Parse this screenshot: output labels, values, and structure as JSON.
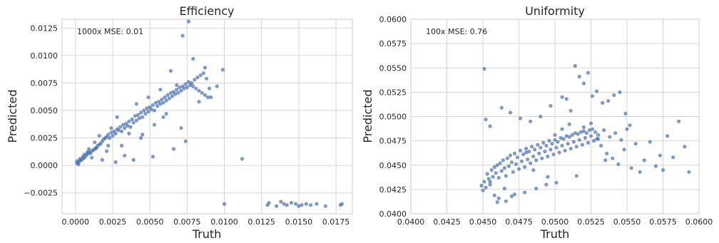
{
  "chart_data": [
    {
      "type": "scatter",
      "title": "Efficiency",
      "xlabel": "Truth",
      "ylabel": "Predicted",
      "annotation": "1000x MSE: 0.01",
      "xlim": [
        -0.0009,
        0.0186
      ],
      "ylim": [
        -0.0044,
        0.0133
      ],
      "xticks": [
        0.0,
        0.0025,
        0.005,
        0.0075,
        0.01,
        0.0125,
        0.015,
        0.0175
      ],
      "xtick_labels": [
        "0.0000",
        "0.0025",
        "0.0050",
        "0.0075",
        "0.0100",
        "0.0125",
        "0.0150",
        "0.0175"
      ],
      "yticks": [
        -0.0025,
        0.0,
        0.0025,
        0.005,
        0.0075,
        0.01,
        0.0125
      ],
      "ytick_labels": [
        "−0.0025",
        "0.0000",
        "0.0025",
        "0.0050",
        "0.0075",
        "0.0100",
        "0.0125"
      ],
      "grid": true,
      "color": "#4c72b0",
      "x": [
        0.0001,
        0.0001,
        0.0002,
        0.0002,
        0.0003,
        0.0004,
        0.0005,
        0.0006,
        0.0007,
        0.0008,
        0.0009,
        0.001,
        0.0011,
        0.0012,
        0.0013,
        0.0014,
        0.0015,
        0.0016,
        0.0017,
        0.0018,
        0.0019,
        0.002,
        0.0021,
        0.0022,
        0.0023,
        0.0024,
        0.0025,
        0.0026,
        0.0027,
        0.0028,
        0.0029,
        0.003,
        0.0031,
        0.0032,
        0.0033,
        0.0034,
        0.0035,
        0.0036,
        0.0037,
        0.0038,
        0.0039,
        0.004,
        0.0041,
        0.0042,
        0.0043,
        0.0044,
        0.0045,
        0.0046,
        0.0047,
        0.0048,
        0.0049,
        0.005,
        0.0051,
        0.0052,
        0.0053,
        0.0054,
        0.0055,
        0.0056,
        0.0057,
        0.0058,
        0.0059,
        0.006,
        0.0061,
        0.0062,
        0.0063,
        0.0064,
        0.0065,
        0.0066,
        0.0067,
        0.0068,
        0.0069,
        0.007,
        0.0071,
        0.0072,
        0.0073,
        0.0074,
        0.0075,
        0.0076,
        0.0077,
        0.0078,
        0.0079,
        0.008,
        0.0081,
        0.0082,
        0.0083,
        0.0084,
        0.0085,
        0.0086,
        0.0087,
        0.0088,
        0.0089,
        0.009,
        0.0095,
        0.0099,
        0.01,
        0.0112,
        0.0129,
        0.013,
        0.0135,
        0.0138,
        0.014,
        0.0142,
        0.0145,
        0.0148,
        0.015,
        0.0152,
        0.0155,
        0.0158,
        0.0162,
        0.0168,
        0.0178,
        0.0179,
        0.0003,
        0.0006,
        0.0009,
        0.0013,
        0.0016,
        0.0021,
        0.0024,
        0.0028,
        0.0031,
        0.0036,
        0.0041,
        0.0045,
        0.0049,
        0.0053,
        0.0057,
        0.0061,
        0.0064,
        0.0068,
        0.0072,
        0.0076,
        0.0079,
        0.0083,
        0.0087,
        0.0091,
        0.0074,
        0.0071,
        0.0066,
        0.0059,
        0.0052,
        0.0044,
        0.0039,
        0.0033,
        0.0027,
        0.0022,
        0.0018,
        0.0014,
        0.0011,
        0.0008,
        0.0005
      ],
      "y": [
        0.0002,
        0.0004,
        0.0003,
        0.0001,
        0.0004,
        0.0005,
        0.0006,
        0.0007,
        0.0009,
        0.001,
        0.0012,
        0.0011,
        0.0013,
        0.0014,
        0.0015,
        0.0016,
        0.0018,
        0.0019,
        0.002,
        0.0022,
        0.0024,
        0.0025,
        0.0026,
        0.0028,
        0.0025,
        0.003,
        0.0027,
        0.0031,
        0.0029,
        0.0033,
        0.0032,
        0.0035,
        0.0031,
        0.0037,
        0.0034,
        0.0038,
        0.0036,
        0.004,
        0.0035,
        0.0042,
        0.0039,
        0.0045,
        0.0041,
        0.0046,
        0.0043,
        0.0048,
        0.0044,
        0.005,
        0.0047,
        0.0052,
        0.0049,
        0.0053,
        0.0051,
        0.0055,
        0.005,
        0.0057,
        0.0054,
        0.0058,
        0.0056,
        0.006,
        0.0057,
        0.0062,
        0.0059,
        0.0064,
        0.0061,
        0.0066,
        0.0063,
        0.0067,
        0.0065,
        0.0069,
        0.0066,
        0.0071,
        0.0068,
        0.0072,
        0.007,
        0.0074,
        0.0071,
        0.0076,
        0.0073,
        0.0075,
        0.0072,
        0.0078,
        0.007,
        0.008,
        0.0068,
        0.0082,
        0.0066,
        0.0084,
        0.0064,
        0.0079,
        0.0062,
        0.007,
        0.0072,
        0.0087,
        -0.0035,
        0.0006,
        -0.0036,
        -0.0034,
        -0.0037,
        -0.0033,
        -0.0035,
        -0.0036,
        -0.0034,
        -0.0035,
        -0.0037,
        -0.0036,
        -0.0035,
        -0.0036,
        -0.0035,
        -0.0037,
        -0.0036,
        -0.0035,
        0.0006,
        0.001,
        0.0015,
        0.0021,
        0.0027,
        0.0013,
        0.0034,
        0.0044,
        0.0018,
        0.0029,
        0.0056,
        0.0028,
        0.0062,
        0.0037,
        0.0069,
        0.0047,
        0.0086,
        0.0073,
        0.0118,
        0.0131,
        0.0097,
        0.0058,
        0.0089,
        0.0062,
        0.0022,
        0.0034,
        0.0015,
        0.0044,
        0.0008,
        0.0025,
        0.0005,
        0.0009,
        0.0003,
        0.0018,
        0.0005,
        0.0016,
        0.0007,
        0.0012,
        0.0008
      ]
    },
    {
      "type": "scatter",
      "title": "Uniformity",
      "xlabel": "Truth",
      "ylabel": "Predicted",
      "annotation": "100x MSE: 0.76",
      "xlim": [
        0.04,
        0.06
      ],
      "ylim": [
        0.04,
        0.06
      ],
      "xticks": [
        0.04,
        0.0425,
        0.045,
        0.0475,
        0.05,
        0.0525,
        0.055,
        0.0575,
        0.06
      ],
      "xtick_labels": [
        "0.0400",
        "0.0425",
        "0.0450",
        "0.0475",
        "0.0500",
        "0.0525",
        "0.0550",
        "0.0575",
        "0.0600"
      ],
      "yticks": [
        0.04,
        0.0425,
        0.045,
        0.0475,
        0.05,
        0.0525,
        0.055,
        0.0575,
        0.06
      ],
      "ytick_labels": [
        "0.0400",
        "0.0425",
        "0.0450",
        "0.0475",
        "0.0500",
        "0.0525",
        "0.0550",
        "0.0575",
        "0.0600"
      ],
      "grid": true,
      "color": "#4c72b0",
      "x": [
        0.0449,
        0.045,
        0.0451,
        0.0452,
        0.0453,
        0.0454,
        0.0455,
        0.0456,
        0.0457,
        0.0458,
        0.0459,
        0.046,
        0.0461,
        0.0462,
        0.0463,
        0.0464,
        0.0465,
        0.0466,
        0.0467,
        0.0468,
        0.0469,
        0.047,
        0.0471,
        0.0472,
        0.0473,
        0.0474,
        0.0475,
        0.0476,
        0.0477,
        0.0478,
        0.0479,
        0.048,
        0.0481,
        0.0482,
        0.0483,
        0.0484,
        0.0485,
        0.0486,
        0.0487,
        0.0488,
        0.0489,
        0.049,
        0.0491,
        0.0492,
        0.0493,
        0.0494,
        0.0495,
        0.0496,
        0.0497,
        0.0498,
        0.0499,
        0.05,
        0.0501,
        0.0502,
        0.0503,
        0.0504,
        0.0505,
        0.0506,
        0.0507,
        0.0508,
        0.0509,
        0.051,
        0.0511,
        0.0512,
        0.0513,
        0.0514,
        0.0515,
        0.0516,
        0.0517,
        0.0518,
        0.0519,
        0.052,
        0.0521,
        0.0522,
        0.0523,
        0.0524,
        0.0525,
        0.0526,
        0.0527,
        0.0528,
        0.0529,
        0.053,
        0.0532,
        0.0534,
        0.0536,
        0.0538,
        0.054,
        0.0542,
        0.0544,
        0.0546,
        0.0548,
        0.055,
        0.0553,
        0.0556,
        0.0559,
        0.0562,
        0.0566,
        0.057,
        0.0573,
        0.0575,
        0.0578,
        0.0582,
        0.0586,
        0.059,
        0.0593,
        0.0451,
        0.0452,
        0.0455,
        0.0458,
        0.0461,
        0.0463,
        0.0466,
        0.0469,
        0.0472,
        0.0476,
        0.0479,
        0.0483,
        0.0487,
        0.049,
        0.0494,
        0.0497,
        0.0501,
        0.0505,
        0.0508,
        0.0511,
        0.0514,
        0.0517,
        0.052,
        0.0523,
        0.0526,
        0.0529,
        0.0533,
        0.0537,
        0.0541,
        0.0545,
        0.0549,
        0.0552,
        0.0455,
        0.046,
        0.0465,
        0.047,
        0.048,
        0.0485,
        0.0495,
        0.05,
        0.0505,
        0.051,
        0.0515,
        0.052,
        0.0525,
        0.053,
        0.0535
      ],
      "y": [
        0.0429,
        0.0424,
        0.0433,
        0.0427,
        0.0441,
        0.0436,
        0.043,
        0.0445,
        0.0438,
        0.0448,
        0.0442,
        0.045,
        0.0437,
        0.0452,
        0.0444,
        0.0455,
        0.0447,
        0.0439,
        0.0457,
        0.0449,
        0.046,
        0.0453,
        0.0443,
        0.0462,
        0.0451,
        0.0458,
        0.0446,
        0.0465,
        0.0454,
        0.0461,
        0.0448,
        0.0467,
        0.0456,
        0.0464,
        0.0452,
        0.0469,
        0.0459,
        0.0466,
        0.0455,
        0.0471,
        0.0462,
        0.0468,
        0.0457,
        0.0473,
        0.0464,
        0.047,
        0.0459,
        0.0475,
        0.0466,
        0.0472,
        0.0461,
        0.0476,
        0.0468,
        0.0474,
        0.0463,
        0.0478,
        0.047,
        0.0477,
        0.0465,
        0.048,
        0.0472,
        0.0479,
        0.0467,
        0.0481,
        0.0474,
        0.0483,
        0.0469,
        0.0482,
        0.0476,
        0.0484,
        0.0471,
        0.0485,
        0.0478,
        0.0483,
        0.0473,
        0.0486,
        0.048,
        0.0487,
        0.0475,
        0.0484,
        0.0477,
        0.0481,
        0.047,
        0.0486,
        0.0462,
        0.0479,
        0.0457,
        0.0483,
        0.0451,
        0.0476,
        0.0466,
        0.0487,
        0.0447,
        0.0472,
        0.0443,
        0.0455,
        0.0474,
        0.0449,
        0.046,
        0.0445,
        0.048,
        0.0458,
        0.0495,
        0.0469,
        0.0443,
        0.0549,
        0.0497,
        0.049,
        0.0419,
        0.0416,
        0.0509,
        0.0413,
        0.0504,
        0.042,
        0.0498,
        0.0422,
        0.0495,
        0.0426,
        0.05,
        0.043,
        0.0511,
        0.0432,
        0.052,
        0.0518,
        0.0506,
        0.0552,
        0.0541,
        0.0534,
        0.0545,
        0.0521,
        0.0526,
        0.0514,
        0.0516,
        0.0522,
        0.0525,
        0.0503,
        0.0491,
        0.0433,
        0.0412,
        0.0426,
        0.0418,
        0.0463,
        0.0445,
        0.0438,
        0.0481,
        0.0487,
        0.0492,
        0.0439,
        0.0489,
        0.0493,
        0.0477,
        0.0455
      ]
    }
  ]
}
